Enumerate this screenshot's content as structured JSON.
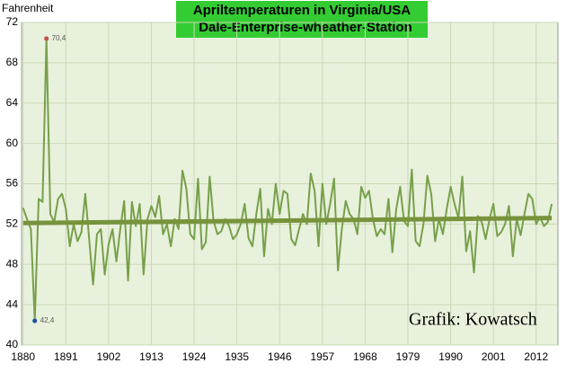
{
  "chart_data": {
    "type": "line",
    "title": [
      "Apriltemperaturen in Virginia/USA",
      "Dale-Enterprise-wheather-Station"
    ],
    "y_axis_label": "Fahrenheit",
    "annotation": "Grafik: Kowatsch",
    "x": [
      1880,
      1881,
      1882,
      1883,
      1884,
      1885,
      1886,
      1887,
      1888,
      1889,
      1890,
      1891,
      1892,
      1893,
      1894,
      1895,
      1896,
      1897,
      1898,
      1899,
      1900,
      1901,
      1902,
      1903,
      1904,
      1905,
      1906,
      1907,
      1908,
      1909,
      1910,
      1911,
      1912,
      1913,
      1914,
      1915,
      1916,
      1917,
      1918,
      1919,
      1920,
      1921,
      1922,
      1923,
      1924,
      1925,
      1926,
      1927,
      1928,
      1929,
      1930,
      1931,
      1932,
      1933,
      1934,
      1935,
      1936,
      1937,
      1938,
      1939,
      1940,
      1941,
      1942,
      1943,
      1944,
      1945,
      1946,
      1947,
      1948,
      1949,
      1950,
      1951,
      1952,
      1953,
      1954,
      1955,
      1956,
      1957,
      1958,
      1959,
      1960,
      1961,
      1962,
      1963,
      1964,
      1965,
      1966,
      1967,
      1968,
      1969,
      1970,
      1971,
      1972,
      1973,
      1974,
      1975,
      1976,
      1977,
      1978,
      1979,
      1980,
      1981,
      1982,
      1983,
      1984,
      1985,
      1986,
      1987,
      1988,
      1989,
      1990,
      1991,
      1992,
      1993,
      1994,
      1995,
      1996,
      1997,
      1998,
      1999,
      2000,
      2001,
      2002,
      2003,
      2004,
      2005,
      2006,
      2007,
      2008,
      2009,
      2010,
      2011,
      2012,
      2013,
      2014,
      2015,
      2016
    ],
    "series": [
      {
        "color": "#77a04a",
        "values": [
          53.6,
          52.5,
          51.5,
          42.4,
          54.5,
          54.2,
          70.4,
          53,
          52.2,
          54.5,
          55,
          53.5,
          49.8,
          52,
          50.3,
          51.2,
          55,
          50.5,
          46,
          51,
          51.5,
          47,
          50,
          51.5,
          48.3,
          51.5,
          54.3,
          46.4,
          54.2,
          51.8,
          54,
          47,
          52.5,
          53.8,
          52.7,
          54.8,
          51,
          52,
          49.8,
          52.5,
          51.5,
          57.3,
          55.5,
          51,
          50.5,
          56.5,
          49.5,
          50.2,
          56.7,
          52.3,
          51,
          51.3,
          52.5,
          51.8,
          50.5,
          51,
          52,
          54,
          50.6,
          49.8,
          53,
          55.5,
          48.8,
          53.5,
          52,
          56,
          53,
          55.3,
          55,
          50.5,
          49.9,
          51.5,
          53,
          52,
          57,
          55.3,
          49.8,
          56,
          52,
          54,
          56.5,
          47.4,
          51.5,
          54.3,
          53,
          52.5,
          51,
          55.7,
          54.6,
          55.3,
          52.5,
          50.8,
          51.5,
          51,
          54.5,
          49.2,
          53.5,
          55.7,
          52.3,
          51.8,
          57.4,
          50.3,
          49.8,
          52,
          56.8,
          55,
          50.3,
          52.5,
          51,
          53.5,
          55.7,
          54,
          52.6,
          56.7,
          49.3,
          51.3,
          47.2,
          52.8,
          52.2,
          50.5,
          52.5,
          54,
          50.8,
          51.2,
          52,
          53.8,
          48.8,
          52.5,
          50.9,
          53,
          55,
          54.5,
          52,
          52.7,
          51.8,
          52.2,
          54
        ]
      }
    ],
    "trendline": {
      "x": [
        1880,
        2016
      ],
      "values": [
        52.1,
        52.6
      ],
      "color": "#77933c"
    },
    "highlights": [
      {
        "x": 1886,
        "value": 70.4,
        "label": "70,4",
        "color": "#c0504d"
      },
      {
        "x": 1883,
        "value": 42.4,
        "label": "42,4",
        "color": "#1f4fa0"
      }
    ],
    "xlim": [
      1879.6,
      2017.6
    ],
    "ylim": [
      40,
      72
    ],
    "xticks": [
      1880,
      1891,
      1902,
      1913,
      1924,
      1935,
      1946,
      1957,
      1968,
      1979,
      1990,
      2001,
      2012
    ],
    "yticks": [
      40,
      44,
      48,
      52,
      56,
      60,
      64,
      68,
      72
    ],
    "grid": true
  }
}
